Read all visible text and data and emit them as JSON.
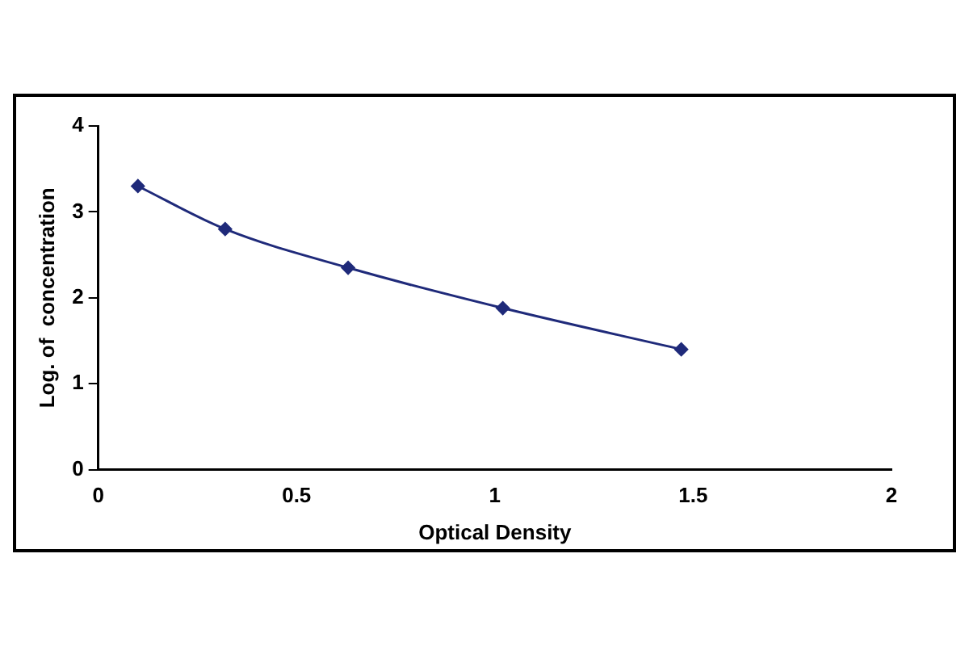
{
  "chart_data": {
    "type": "line",
    "xlabel": "Optical Density",
    "ylabel": "Log. of  concentration",
    "x": [
      0.1,
      0.32,
      0.63,
      1.02,
      1.47
    ],
    "series": [
      {
        "color": "#1f2a7a",
        "values": [
          3.3,
          2.8,
          2.35,
          1.88,
          1.4
        ]
      }
    ],
    "xlim": [
      0,
      2
    ],
    "xticks": [
      0,
      0.5,
      1,
      1.5,
      2
    ],
    "ylim": [
      0,
      4
    ],
    "yticks": [
      0,
      1,
      2,
      3,
      4
    ],
    "grid": false,
    "legend": false,
    "marker": "diamond",
    "line_style": "solid"
  }
}
